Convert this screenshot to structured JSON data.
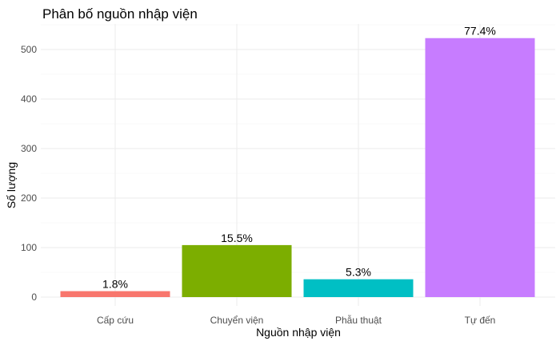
{
  "chart_data": {
    "type": "bar",
    "title": "Phân bố nguồn nhập viện",
    "xlabel": "Nguồn nhập viện",
    "ylabel": "Số lượng",
    "categories": [
      "Cấp cứu",
      "Chuyển viện",
      "Phẫu thuật",
      "Tự đến"
    ],
    "values": [
      12,
      105,
      36,
      523
    ],
    "labels": [
      "1.8%",
      "15.5%",
      "5.3%",
      "77.4%"
    ],
    "colors": [
      "#F8766D",
      "#7CAE00",
      "#00BFC4",
      "#C77CFF"
    ],
    "ylim": [
      0,
      550
    ],
    "yticks": [
      0,
      100,
      200,
      300,
      400,
      500
    ],
    "grid": true,
    "legend": "none"
  }
}
